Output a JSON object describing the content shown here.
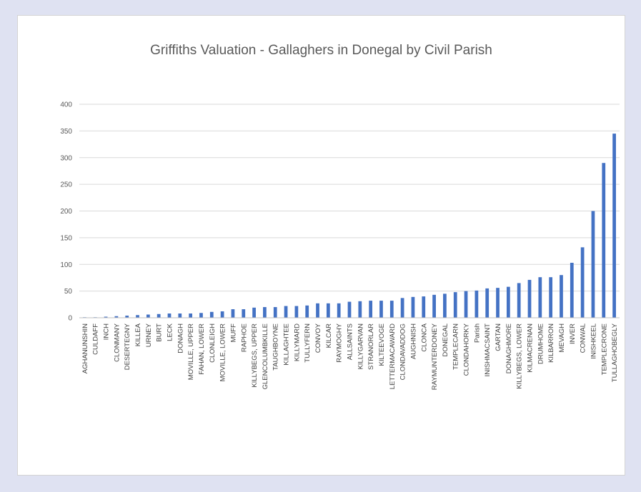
{
  "chart_data": {
    "type": "bar",
    "title": "Griffiths Valuation - Gallaghers in Donegal by Civil Parish",
    "xlabel": "",
    "ylabel": "",
    "ylim": [
      0,
      400
    ],
    "yticks": [
      0,
      50,
      100,
      150,
      200,
      250,
      300,
      350,
      400
    ],
    "grid": true,
    "legend": "none",
    "bar_color": "#4472c4",
    "categories": [
      "AGHANUNSHIN",
      "CULDAFF",
      "INCH",
      "CLONMANY",
      "DESERTEGNY",
      "KILLEA",
      "URNEY",
      "BURT",
      "LECK",
      "DONAGH",
      "MOVILLE, UPPER",
      "FAHAN, LOWER",
      "CLONLEIGH",
      "MOVILLE, LOWER",
      "MUFF",
      "RAPHOE",
      "KILLYBEGS, UPPER",
      "GLENCOLUMBKILLE",
      "TAUGHBOYNE",
      "KILLAGHTEE",
      "KILLYMARD",
      "TULLYFERN",
      "CONVOY",
      "KILCAR",
      "RAYMOGHY",
      "ALLSAINTS",
      "KILLYGARVAN",
      "STRANORLAR",
      "KILTEEVOGE",
      "LETTERMACAWARD",
      "CLONDAVADDOG",
      "AUGHNISH",
      "CLONCA",
      "RAYMUNTERDONEY",
      "DONEGAL",
      "TEMPLECARN",
      "CLONDAHORKY",
      "Parish",
      "INISHMACSAINT",
      "GARTAN",
      "DONAGHMORE",
      "KILLYBEGS, LOWER",
      "KILMACRENAN",
      "DRUMHOME",
      "KILBARRON",
      "MEVAGH",
      "INVER",
      "CONWAL",
      "INISHKEEL",
      "TEMPLECRONE",
      "TULLAGHOBEGLY"
    ],
    "values": [
      1,
      1,
      2,
      3,
      4,
      5,
      6,
      7,
      8,
      8,
      8,
      9,
      11,
      12,
      16,
      16,
      19,
      20,
      20,
      22,
      22,
      23,
      27,
      27,
      27,
      30,
      31,
      32,
      32,
      32,
      37,
      39,
      40,
      43,
      45,
      48,
      50,
      51,
      55,
      56,
      58,
      65,
      71,
      76,
      76,
      80,
      103,
      132,
      200,
      290,
      345
    ]
  }
}
